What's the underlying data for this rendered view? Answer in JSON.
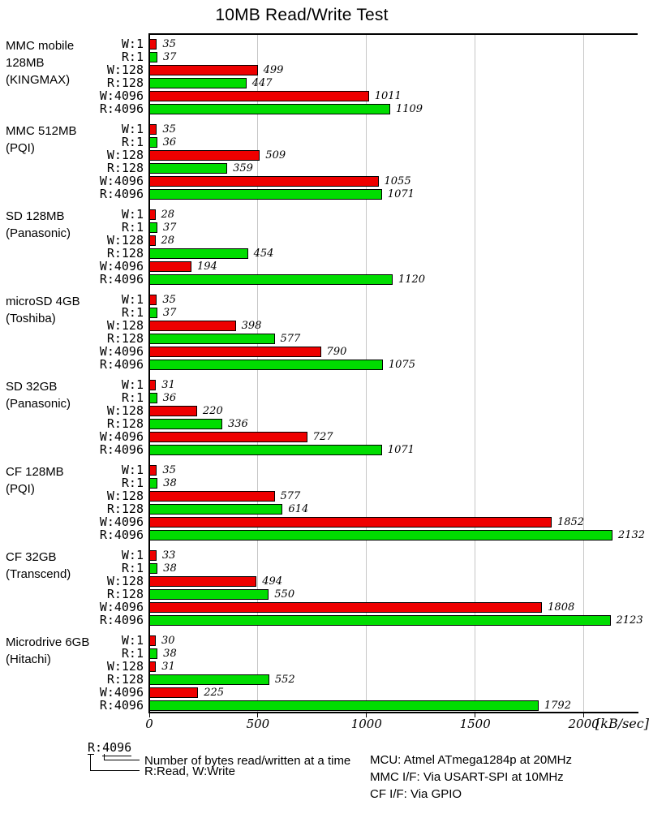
{
  "title": "10MB Read/Write Test",
  "axis": {
    "unit_label": "[kB/sec]",
    "ticks": [
      0,
      500,
      1000,
      1500,
      2000
    ],
    "max": 2248
  },
  "colors": {
    "write_bar": "#ee0000",
    "read_bar": "#00dd00",
    "gridline": "#c6c6c6",
    "axis": "#000000"
  },
  "chart_data": {
    "type": "bar",
    "orientation": "horizontal",
    "title": "10MB Read/Write Test",
    "xlabel": "[kB/sec]",
    "xlim": [
      0,
      2248
    ],
    "x_ticks": [
      0,
      500,
      1000,
      1500,
      2000
    ],
    "grid": true,
    "categories": [
      "W:1",
      "R:1",
      "W:128",
      "R:128",
      "W:4096",
      "R:4096"
    ],
    "series_colors": {
      "write": "#ee0000",
      "read": "#00dd00"
    },
    "groups": [
      {
        "device": [
          "MMC mobile",
          "128MB",
          "(KINGMAX)"
        ],
        "values": [
          35,
          37,
          499,
          447,
          1011,
          1109
        ]
      },
      {
        "device": [
          "MMC 512MB",
          "(PQI)"
        ],
        "values": [
          35,
          36,
          509,
          359,
          1055,
          1071
        ]
      },
      {
        "device": [
          "SD 128MB",
          "(Panasonic)"
        ],
        "values": [
          28,
          37,
          28,
          454,
          194,
          1120
        ]
      },
      {
        "device": [
          "microSD 4GB",
          "(Toshiba)"
        ],
        "values": [
          35,
          37,
          398,
          577,
          790,
          1075
        ]
      },
      {
        "device": [
          "SD 32GB",
          "(Panasonic)"
        ],
        "values": [
          31,
          36,
          220,
          336,
          727,
          1071
        ]
      },
      {
        "device": [
          "CF 128MB",
          "(PQI)"
        ],
        "values": [
          35,
          38,
          577,
          614,
          1852,
          2132
        ]
      },
      {
        "device": [
          "CF 32GB",
          "(Transcend)"
        ],
        "values": [
          33,
          38,
          494,
          550,
          1808,
          2123
        ]
      },
      {
        "device": [
          "Microdrive 6GB",
          "(Hitachi)"
        ],
        "values": [
          30,
          38,
          31,
          552,
          225,
          1792
        ]
      }
    ]
  },
  "legend": {
    "example_prefix": "R:",
    "example_value": "4096",
    "line1": "Number of bytes read/written at a time",
    "line2": "R:Read, W:Write"
  },
  "notes": [
    "MCU: Atmel ATmega1284p at 20MHz",
    "MMC I/F: Via USART-SPI at 10MHz",
    "CF I/F: Via GPIO"
  ]
}
